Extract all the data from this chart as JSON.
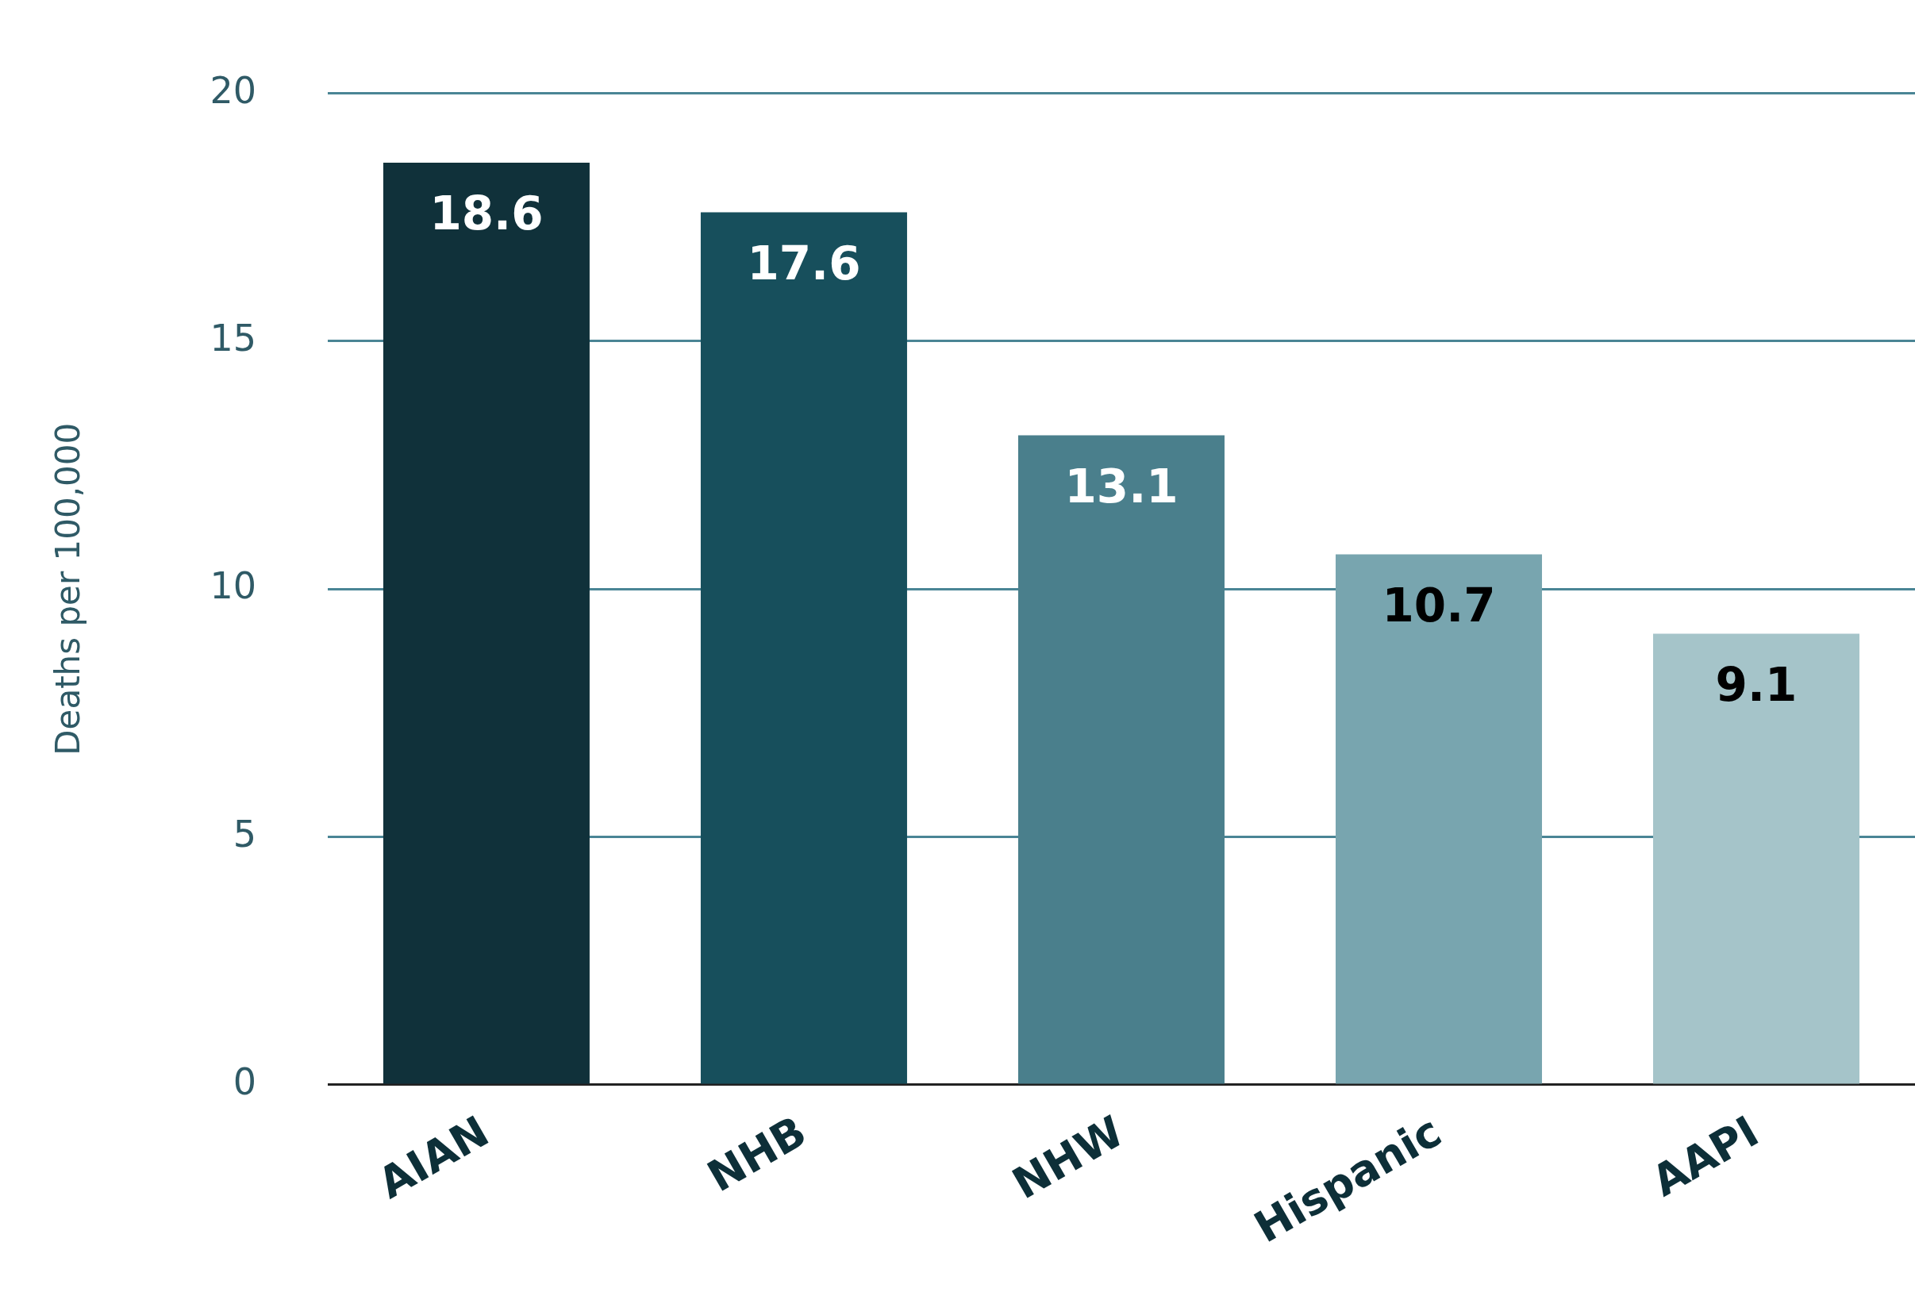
{
  "chart_data": {
    "type": "bar",
    "ylabel": "Deaths per 100,000",
    "categories": [
      "AIAN",
      "NHB",
      "NHW",
      "Hispanic",
      "AAPI"
    ],
    "values": [
      18.6,
      17.6,
      13.1,
      10.7,
      9.1
    ],
    "colors": [
      "#10313a",
      "#174f5c",
      "#4a7f8c",
      "#78a5af",
      "#a5c4c9"
    ],
    "ylim": [
      0,
      20
    ],
    "yticks": [
      0,
      5,
      10,
      15,
      20
    ],
    "grid": "y",
    "data_labels": true,
    "legend": false
  }
}
